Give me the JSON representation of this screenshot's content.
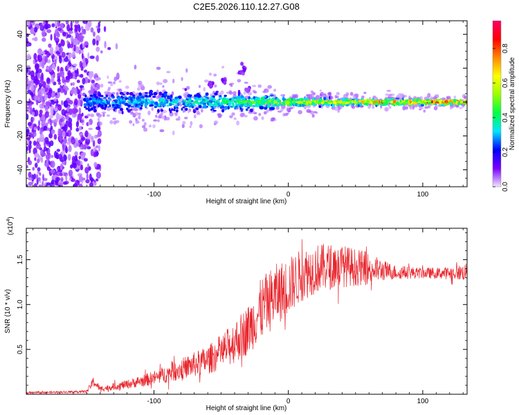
{
  "figure": {
    "title": "C2E5.2026.110.12.27.G08",
    "colors": {
      "frame": "#000000",
      "snr_line": "#e8232a",
      "background": "#ffffff"
    }
  },
  "chart_data": [
    {
      "type": "heatmap",
      "title": "C2E5.2026.110.12.27.G08",
      "xlabel": "Height of straight line (km)",
      "ylabel": "Frequency (Hz)",
      "xlim": [
        -195,
        133
      ],
      "ylim": [
        -50,
        48
      ],
      "xticks": [
        -100,
        0,
        100
      ],
      "xtick_labels": [
        "-100",
        "0",
        "100"
      ],
      "yticks": [
        -40,
        -20,
        0,
        20,
        40
      ],
      "ytick_labels": [
        "-40",
        "-20",
        "0",
        "20",
        "40"
      ],
      "colorbar": {
        "label": "Normalized spectral amplitude",
        "range": [
          0,
          0.96
        ],
        "ticks": [
          0.0,
          0.2,
          0.4,
          0.6,
          0.8
        ],
        "tick_labels": [
          "0.0",
          "0.2",
          "0.4",
          "0.6",
          "0.8"
        ],
        "colormap": [
          "#f0e6ff",
          "#7a00ff",
          "#0000ff",
          "#00e5ff",
          "#00ff44",
          "#9aff00",
          "#ffff00",
          "#ff8800",
          "#ff0000",
          "#ff0066"
        ]
      },
      "description_points": {
        "band_center_hz": 0,
        "band_halfwidth_hz_at_height": [
          [
            -150,
            6
          ],
          [
            -100,
            7
          ],
          [
            -50,
            6
          ],
          [
            -20,
            5
          ],
          [
            0,
            3
          ],
          [
            50,
            2
          ],
          [
            100,
            2
          ],
          [
            133,
            1.5
          ]
        ],
        "peak_amplitude_at_height": [
          [
            -150,
            0.35
          ],
          [
            -100,
            0.4
          ],
          [
            -50,
            0.45
          ],
          [
            -20,
            0.55
          ],
          [
            0,
            0.65
          ],
          [
            50,
            0.8
          ],
          [
            100,
            0.9
          ],
          [
            133,
            0.95
          ]
        ],
        "noise_region_km": [
          -195,
          -140
        ],
        "isolated_features": [
          [
            -57,
            10
          ],
          [
            -48,
            12
          ],
          [
            -35,
            17
          ],
          [
            -33,
            20
          ],
          [
            -30,
            7
          ]
        ]
      }
    },
    {
      "type": "line",
      "xlabel": "Height of straight line (km)",
      "ylabel": "SNR (10 * v/v)",
      "y_multiplier_label": "(x10",
      "y_multiplier_exponent": "4",
      "xlim": [
        -195,
        133
      ],
      "ylim": [
        0,
        18500
      ],
      "xticks": [
        -100,
        0,
        100
      ],
      "xtick_labels": [
        "-100",
        "0",
        "100"
      ],
      "yticks": [
        5000,
        10000,
        15000
      ],
      "ytick_labels": [
        "0.5",
        "1.0",
        "1.5"
      ],
      "series": [
        {
          "name": "SNR",
          "color": "#e8232a",
          "envelope_x": [
            -195,
            -150,
            -145,
            -140,
            -120,
            -100,
            -80,
            -60,
            -45,
            -30,
            -20,
            -10,
            0,
            10,
            20,
            30,
            40,
            60,
            70,
            80,
            100,
            120,
            133
          ],
          "envelope_mean": [
            150,
            300,
            1400,
            600,
            1100,
            1800,
            2800,
            3800,
            5200,
            7200,
            9500,
            11000,
            12000,
            13300,
            14000,
            14200,
            14300,
            14000,
            13800,
            13600,
            13500,
            13500,
            13600
          ],
          "envelope_spread": [
            100,
            150,
            600,
            300,
            500,
            800,
            1200,
            1600,
            2200,
            2800,
            3500,
            3500,
            3200,
            3000,
            2800,
            2600,
            2400,
            1800,
            1200,
            800,
            600,
            700,
            1000
          ]
        }
      ]
    }
  ]
}
